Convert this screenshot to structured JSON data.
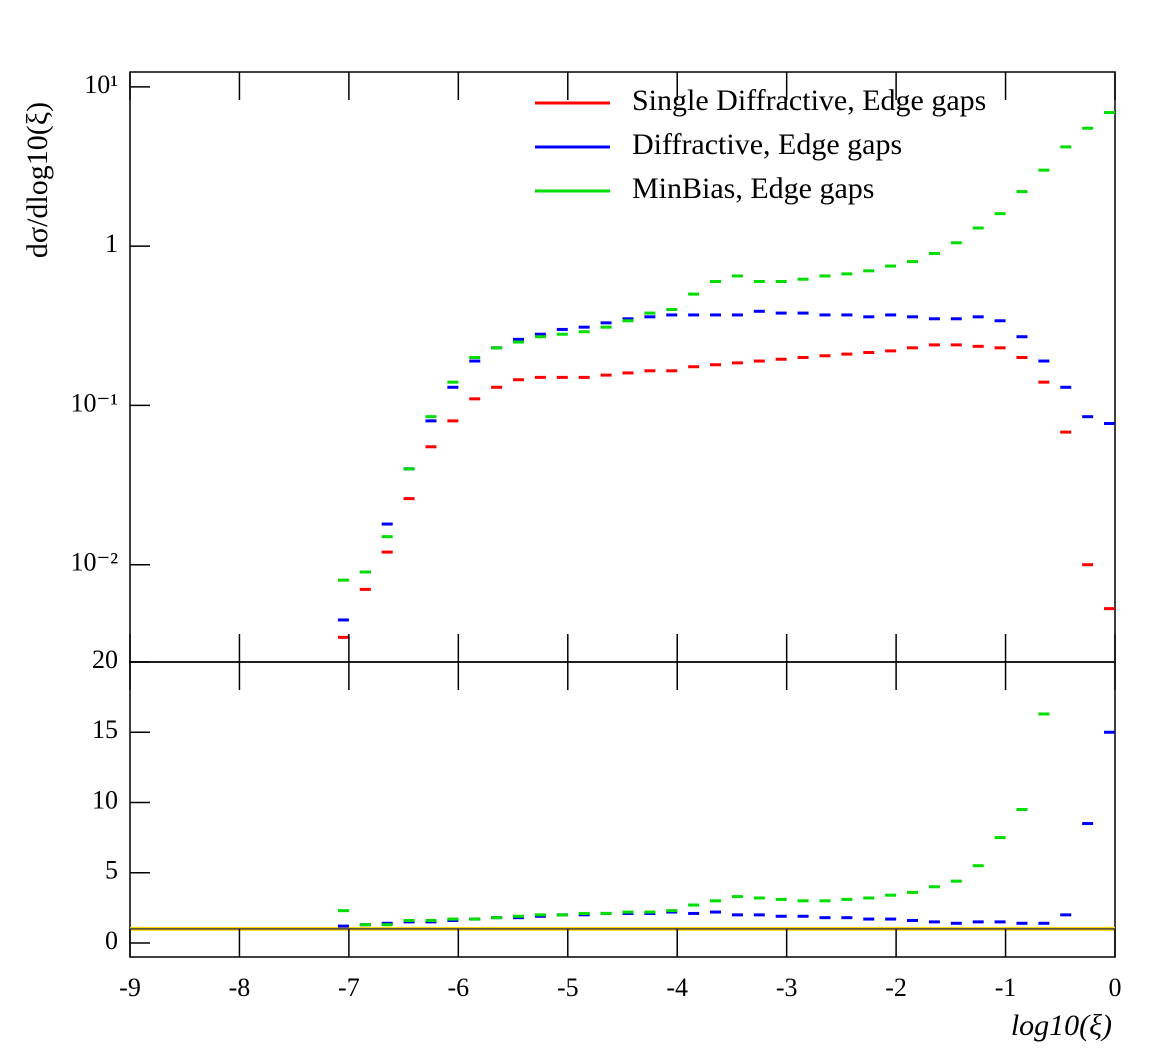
{
  "chart_data": [
    {
      "type": "scatter",
      "ylabel": "dσ/dlog10(ξ)",
      "log_y": true,
      "legend": "top-right",
      "xlim": [
        -9,
        0
      ],
      "ylim": [
        0.00245,
        12.4
      ],
      "yticks": [
        {
          "value": 0.01,
          "label": "10⁻²"
        },
        {
          "value": 0.1,
          "label": "10⁻¹"
        },
        1,
        {
          "value": 10,
          "label": "10¹"
        }
      ],
      "x": [
        -7.05,
        -6.85,
        -6.65,
        -6.45,
        -6.25,
        -6.05,
        -5.85,
        -5.65,
        -5.45,
        -5.25,
        -5.05,
        -4.85,
        -4.65,
        -4.45,
        -4.25,
        -4.05,
        -3.85,
        -3.65,
        -3.45,
        -3.25,
        -3.05,
        -2.85,
        -2.65,
        -2.45,
        -2.25,
        -2.05,
        -1.85,
        -1.65,
        -1.45,
        -1.25,
        -1.05,
        -0.85,
        -0.65,
        -0.45,
        -0.25,
        -0.05
      ],
      "series": [
        {
          "name": "Single Diffractive, Edge gaps",
          "color": "#ff0000",
          "values": [
            0.0035,
            0.007,
            0.012,
            0.026,
            0.055,
            0.08,
            0.11,
            0.13,
            0.145,
            0.15,
            0.15,
            0.15,
            0.155,
            0.16,
            0.165,
            0.165,
            0.175,
            0.18,
            0.185,
            0.19,
            0.195,
            0.2,
            0.205,
            0.21,
            0.215,
            0.22,
            0.23,
            0.24,
            0.24,
            0.235,
            0.23,
            0.2,
            0.14,
            0.068,
            0.01,
            0.0053
          ]
        },
        {
          "name": "Diffractive, Edge gaps",
          "color": "#0000ff",
          "values": [
            0.0045,
            0.009,
            0.018,
            0.04,
            0.08,
            0.13,
            0.19,
            0.23,
            0.26,
            0.28,
            0.3,
            0.31,
            0.33,
            0.35,
            0.36,
            0.37,
            0.37,
            0.37,
            0.37,
            0.39,
            0.38,
            0.38,
            0.37,
            0.37,
            0.36,
            0.37,
            0.36,
            0.35,
            0.35,
            0.36,
            0.34,
            0.27,
            0.19,
            0.13,
            0.085,
            0.077
          ]
        },
        {
          "name": "MinBias, Edge gaps",
          "color": "#00dd00",
          "values": [
            0.008,
            0.009,
            0.015,
            0.04,
            0.085,
            0.14,
            0.2,
            0.23,
            0.25,
            0.27,
            0.28,
            0.29,
            0.31,
            0.34,
            0.38,
            0.4,
            0.5,
            0.6,
            0.65,
            0.6,
            0.6,
            0.62,
            0.65,
            0.67,
            0.7,
            0.75,
            0.8,
            0.9,
            1.05,
            1.3,
            1.6,
            2.2,
            3.0,
            4.2,
            5.5,
            6.9
          ]
        }
      ]
    },
    {
      "type": "scatter",
      "xlabel": "log10(ξ)",
      "reference": 1,
      "xlim": [
        -9,
        0
      ],
      "ylim": [
        -1,
        20
      ],
      "yticks": [
        0,
        5,
        10,
        15,
        20
      ],
      "xticks": [
        -9,
        -8,
        -7,
        -6,
        -5,
        -4,
        -3,
        -2,
        -1,
        0
      ],
      "x": [
        -7.05,
        -6.85,
        -6.65,
        -6.45,
        -6.25,
        -6.05,
        -5.85,
        -5.65,
        -5.45,
        -5.25,
        -5.05,
        -4.85,
        -4.65,
        -4.45,
        -4.25,
        -4.05,
        -3.85,
        -3.65,
        -3.45,
        -3.25,
        -3.05,
        -2.85,
        -2.65,
        -2.45,
        -2.25,
        -2.05,
        -1.85,
        -1.65,
        -1.45,
        -1.25,
        -1.05,
        -0.85,
        -0.65,
        -0.45,
        -0.25,
        -0.05
      ],
      "series": [
        {
          "color": "#0000ff",
          "values": [
            1.2,
            1.3,
            1.4,
            1.5,
            1.5,
            1.6,
            1.7,
            1.8,
            1.8,
            1.9,
            2.0,
            2.0,
            2.1,
            2.1,
            2.1,
            2.2,
            2.1,
            2.2,
            2.0,
            2.0,
            1.9,
            1.9,
            1.8,
            1.8,
            1.7,
            1.7,
            1.6,
            1.5,
            1.4,
            1.5,
            1.5,
            1.4,
            1.4,
            2.0,
            8.5,
            15
          ]
        },
        {
          "color": "#00dd00",
          "values": [
            2.3,
            1.3,
            1.3,
            1.6,
            1.6,
            1.7,
            1.7,
            1.8,
            1.9,
            2.0,
            2.0,
            2.1,
            2.1,
            2.2,
            2.2,
            2.3,
            2.7,
            3.0,
            3.3,
            3.2,
            3.1,
            3.0,
            3.0,
            3.1,
            3.2,
            3.4,
            3.6,
            4.0,
            4.4,
            5.5,
            7.5,
            9.5,
            16.3,
            null,
            null,
            null
          ]
        }
      ]
    }
  ]
}
